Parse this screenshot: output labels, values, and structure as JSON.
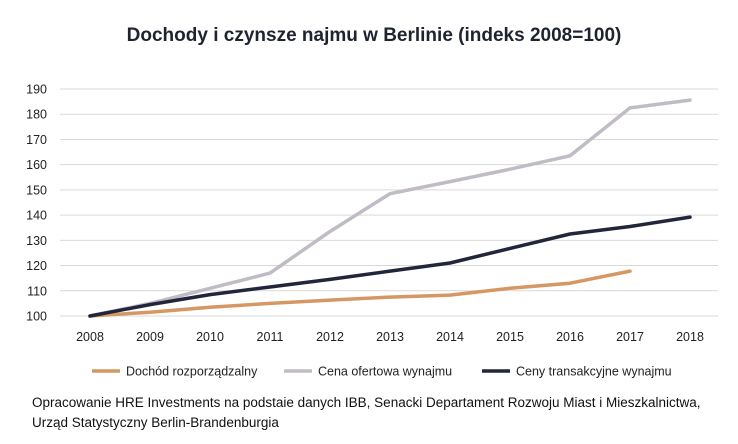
{
  "chart_data": {
    "type": "line",
    "title": "Dochody i czynsze najmu w Berlinie (indeks 2008=100)",
    "xlabel": "",
    "ylabel": "",
    "x": [
      "2008",
      "2009",
      "2010",
      "2011",
      "2012",
      "2013",
      "2014",
      "2015",
      "2016",
      "2017",
      "2018"
    ],
    "ylim": [
      100,
      190
    ],
    "yticks": [
      100,
      110,
      120,
      130,
      140,
      150,
      160,
      170,
      180,
      190
    ],
    "grid": true,
    "legend_position": "bottom",
    "series": [
      {
        "name": "Dochód rozporządzalny",
        "color": "#d59863",
        "values": [
          100,
          101.5,
          103.5,
          105,
          106.3,
          107.5,
          108.3,
          111,
          113,
          117.8,
          null
        ]
      },
      {
        "name": "Cena ofertowa wynajmu",
        "color": "#c0bbc4",
        "values": [
          100,
          105,
          111,
          117,
          133.5,
          148.5,
          153.3,
          158.2,
          163.5,
          182.5,
          185.6
        ]
      },
      {
        "name": "Ceny transakcyjne wynajmu",
        "color": "#22263a",
        "values": [
          100,
          104.5,
          108.5,
          111.5,
          114.5,
          117.8,
          121,
          126.8,
          132.5,
          135.5,
          139.2
        ]
      }
    ]
  },
  "source_note": "Opracowanie HRE Investments na podstaie danych IBB, Senacki Departament Rozwoju Miast i Mieszkalnictwa, Urząd Statystyczny Berlin-Brandenburgia"
}
